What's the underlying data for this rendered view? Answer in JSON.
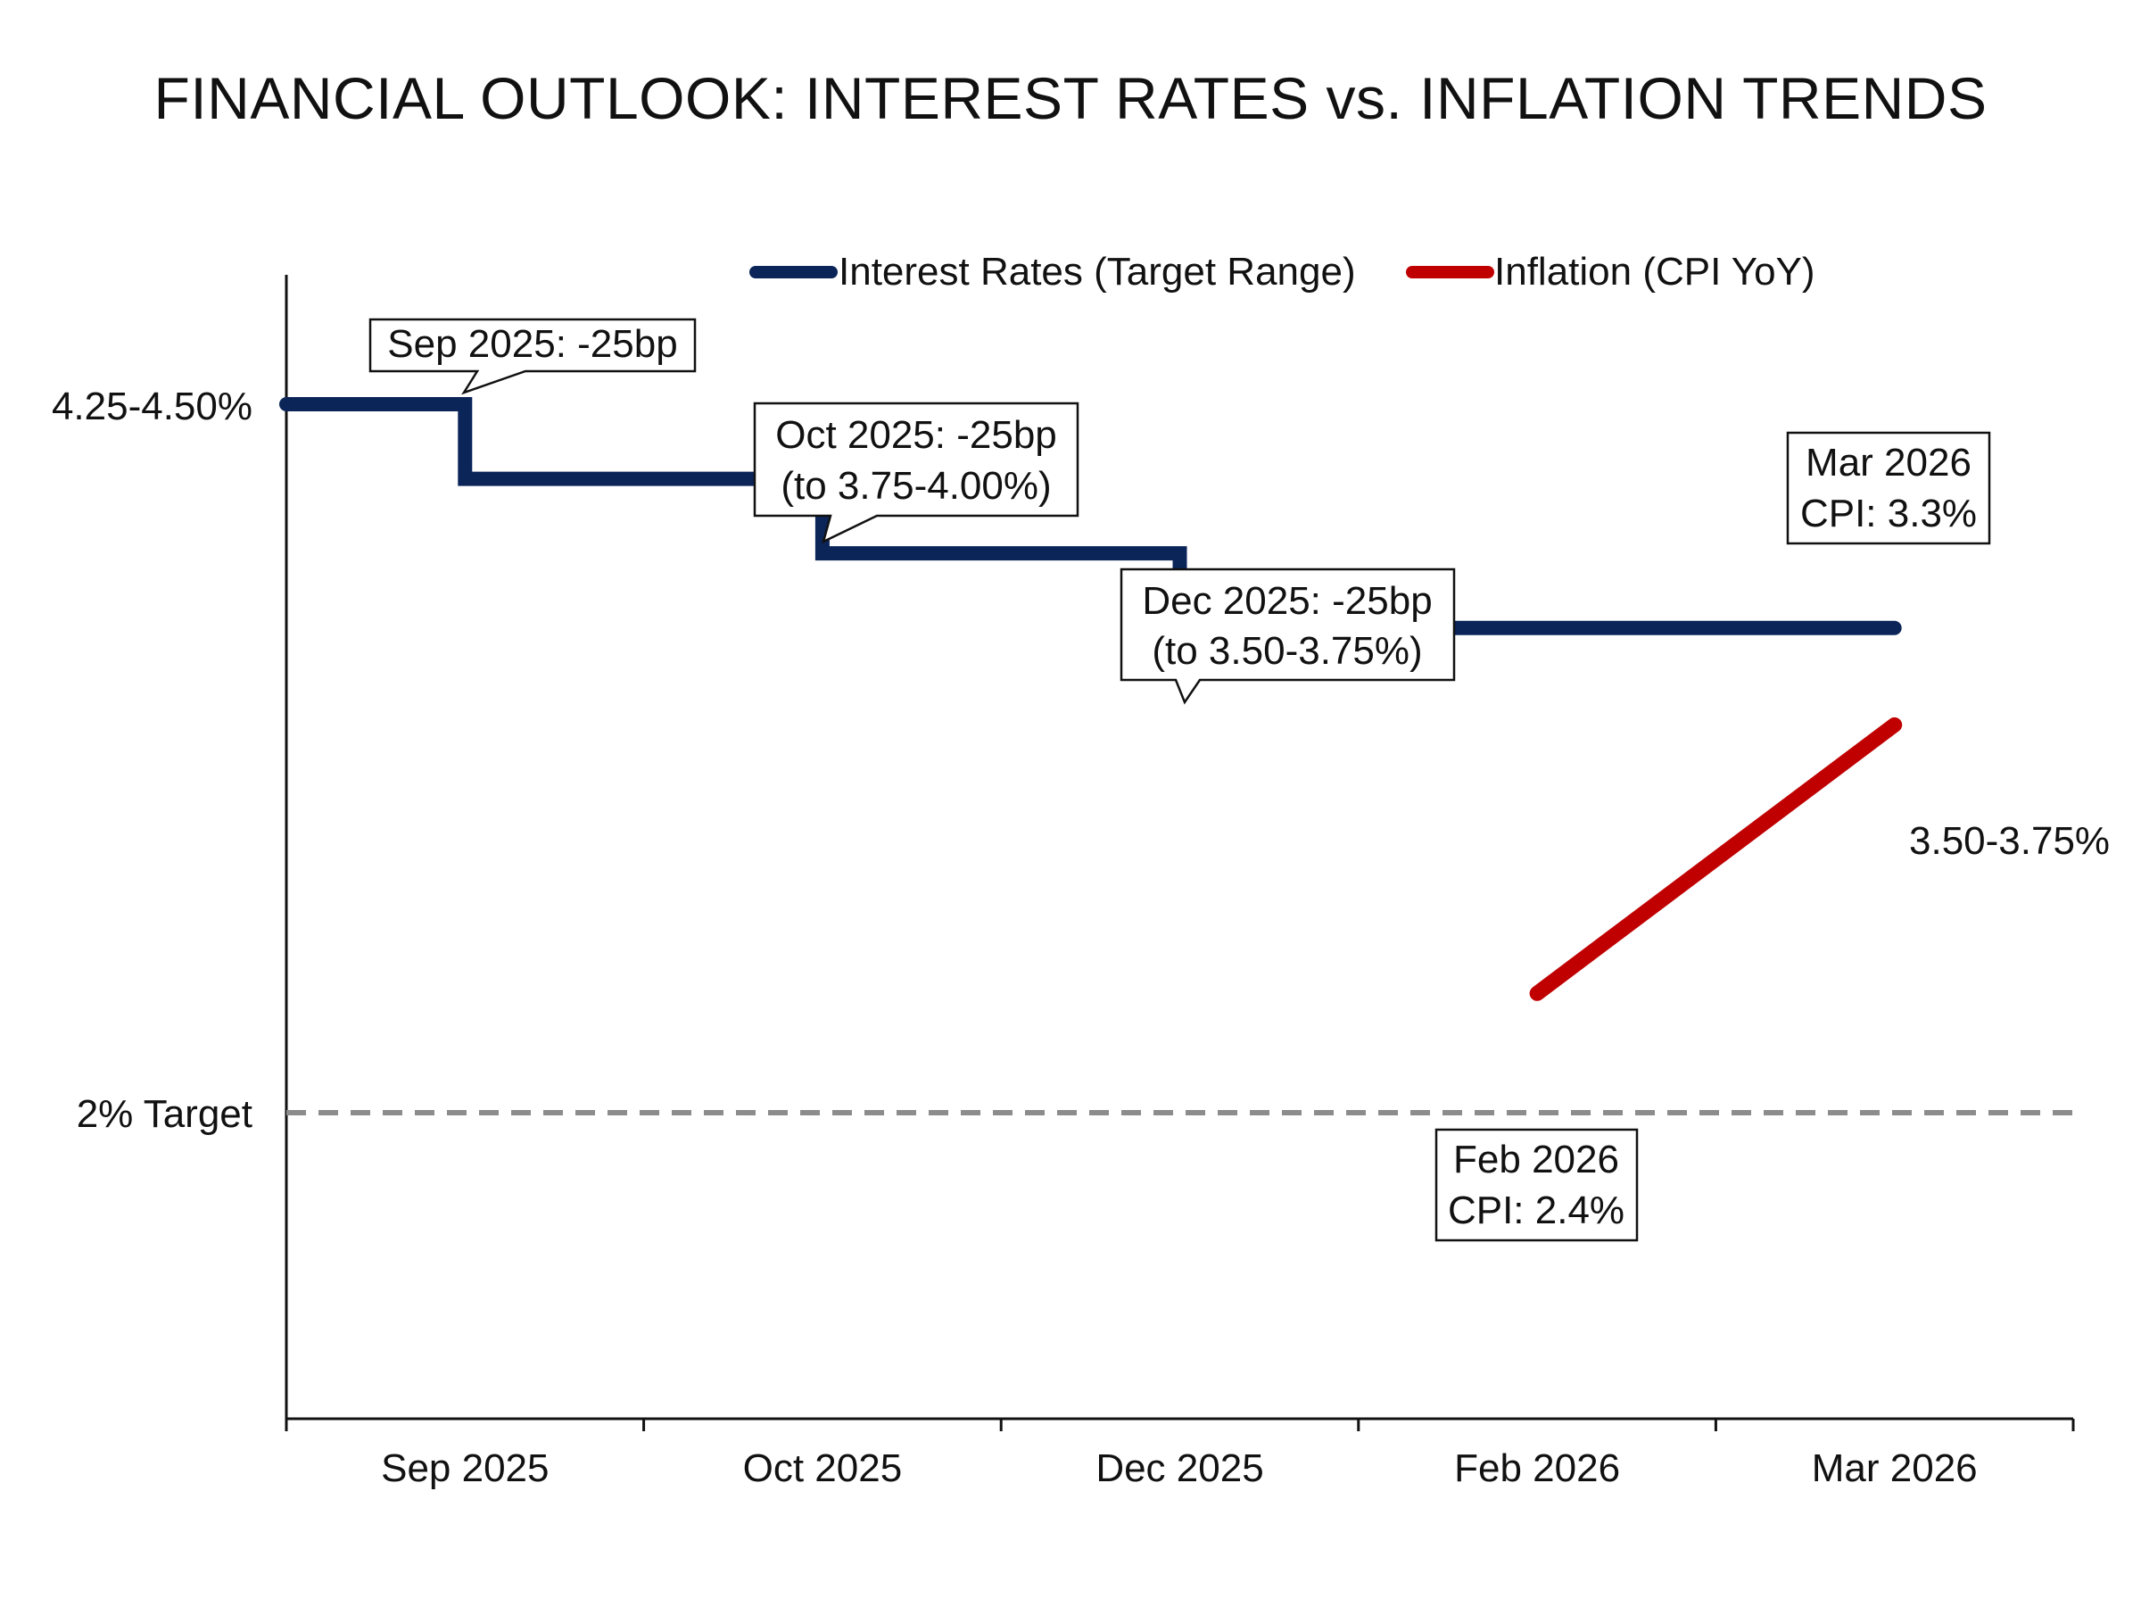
{
  "chart_data": {
    "type": "line",
    "title": "FINANCIAL OUTLOOK: INTEREST RATES vs. INFLATION TRENDS",
    "categories": [
      "Sep 2025",
      "Oct 2025",
      "Dec 2025",
      "Feb 2026",
      "Mar 2026"
    ],
    "y_labels": {
      "rates_start": "4.25-4.50%",
      "target": "2% Target"
    },
    "grid": false,
    "legend_position": "top-center",
    "reference_line": {
      "label": "2% Target",
      "value": 2.0,
      "style": "dashed",
      "color": "#8c8c8c"
    },
    "series": [
      {
        "name": "Interest Rates (Target Range)",
        "color": "#0b2559",
        "shape": "step",
        "points": [
          {
            "x": "start",
            "y": 4.375
          },
          {
            "x": "Sep 2025",
            "y": 4.375
          },
          {
            "x": "Sep 2025",
            "y": 4.125
          },
          {
            "x": "Oct 2025",
            "y": 4.125
          },
          {
            "x": "Oct 2025",
            "y": 3.875
          },
          {
            "x": "Dec 2025",
            "y": 3.875
          },
          {
            "x": "Dec 2025",
            "y": 3.625
          },
          {
            "x": "Mar 2026",
            "y": 3.625
          }
        ],
        "end_label": "3.50-3.75%"
      },
      {
        "name": "Inflation (CPI YoY)",
        "color": "#c00000",
        "shape": "line",
        "points": [
          {
            "x": "Feb 2026",
            "y": 2.4
          },
          {
            "x": "Mar 2026",
            "y": 3.3
          }
        ]
      }
    ],
    "annotations": [
      {
        "id": "sep",
        "lines": [
          "Sep 2025: -25bp"
        ]
      },
      {
        "id": "oct",
        "lines": [
          "Oct 2025: -25bp",
          "(to 3.75-4.00%)"
        ]
      },
      {
        "id": "dec",
        "lines": [
          "Dec 2025: -25bp",
          "(to 3.50-3.75%)"
        ]
      },
      {
        "id": "mar",
        "lines": [
          "Mar 2026",
          "CPI: 3.3%"
        ]
      },
      {
        "id": "feb",
        "lines": [
          "Feb 2026",
          "CPI: 2.4%"
        ]
      }
    ]
  }
}
